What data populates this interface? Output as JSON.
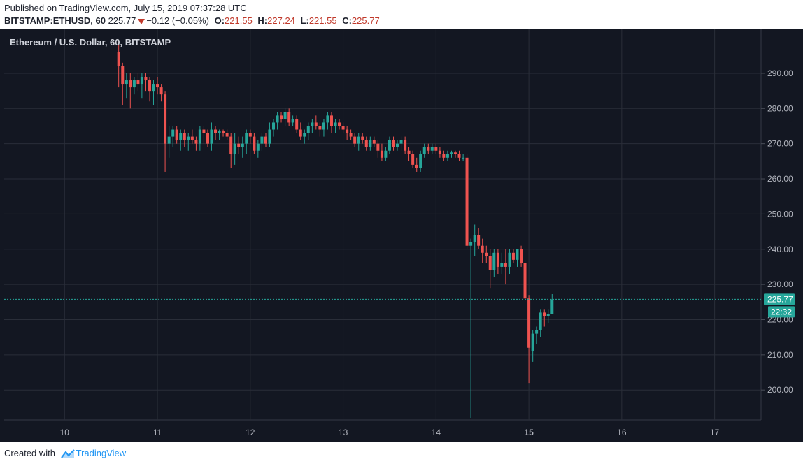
{
  "header": {
    "published": "Published on TradingView.com, July 15, 2019 07:37:28 UTC",
    "symbol": "BITSTAMP:ETHUSD, 60",
    "last": "225.77",
    "change": "−0.12 (−0.05%)",
    "o_label": "O:",
    "o_value": "221.55",
    "h_label": "H:",
    "h_value": "227.24",
    "l_label": "L:",
    "l_value": "221.55",
    "c_label": "C:",
    "c_value": "225.77"
  },
  "footer": {
    "created_with": "Created with",
    "brand": "TradingView"
  },
  "colors": {
    "background": "#131722",
    "grid": "#2a2e39",
    "up": "#26a69a",
    "down": "#ef5350",
    "axis_text": "#b2b5be",
    "price_line": "#26a69a"
  },
  "chart_data": {
    "type": "candlestick",
    "title": "Ethereum / U.S. Dollar, 60, BITSTAMP",
    "x_tick_labels": [
      "10",
      "11",
      "12",
      "13",
      "14",
      "15",
      "16",
      "17"
    ],
    "y_tick_labels": [
      "200.00",
      "210.00",
      "220.00",
      "230.00",
      "240.00",
      "250.00",
      "260.00",
      "270.00",
      "280.00",
      "290.00"
    ],
    "ylim": [
      191.5,
      302.5
    ],
    "xlim": [
      9.35,
      17.5
    ],
    "grid": true,
    "last_price_label": "225.77",
    "countdown_label": "22:32",
    "candles": [
      {
        "t": 10.583,
        "o": 296,
        "h": 299,
        "l": 286,
        "c": 292
      },
      {
        "t": 10.625,
        "o": 292,
        "h": 293,
        "l": 281,
        "c": 287
      },
      {
        "t": 10.667,
        "o": 287,
        "h": 290,
        "l": 283,
        "c": 288
      },
      {
        "t": 10.708,
        "o": 288,
        "h": 290,
        "l": 280,
        "c": 286
      },
      {
        "t": 10.75,
        "o": 286,
        "h": 289,
        "l": 284,
        "c": 288
      },
      {
        "t": 10.792,
        "o": 288,
        "h": 290,
        "l": 285,
        "c": 287
      },
      {
        "t": 10.833,
        "o": 287,
        "h": 290,
        "l": 283,
        "c": 289
      },
      {
        "t": 10.875,
        "o": 289,
        "h": 290,
        "l": 285,
        "c": 288
      },
      {
        "t": 10.917,
        "o": 288,
        "h": 289,
        "l": 282,
        "c": 285
      },
      {
        "t": 10.958,
        "o": 285,
        "h": 288,
        "l": 281,
        "c": 287
      },
      {
        "t": 11.0,
        "o": 287,
        "h": 289,
        "l": 284,
        "c": 286
      },
      {
        "t": 11.042,
        "o": 286,
        "h": 287,
        "l": 282,
        "c": 284
      },
      {
        "t": 11.083,
        "o": 284,
        "h": 285,
        "l": 262,
        "c": 270
      },
      {
        "t": 11.125,
        "o": 270,
        "h": 275,
        "l": 266,
        "c": 272
      },
      {
        "t": 11.167,
        "o": 272,
        "h": 275,
        "l": 269,
        "c": 274
      },
      {
        "t": 11.208,
        "o": 274,
        "h": 275,
        "l": 270,
        "c": 271
      },
      {
        "t": 11.25,
        "o": 271,
        "h": 274,
        "l": 268,
        "c": 273
      },
      {
        "t": 11.292,
        "o": 273,
        "h": 274,
        "l": 269,
        "c": 271
      },
      {
        "t": 11.333,
        "o": 271,
        "h": 273,
        "l": 268,
        "c": 272
      },
      {
        "t": 11.375,
        "o": 272,
        "h": 274,
        "l": 270,
        "c": 271
      },
      {
        "t": 11.417,
        "o": 271,
        "h": 272,
        "l": 268,
        "c": 270
      },
      {
        "t": 11.458,
        "o": 270,
        "h": 275,
        "l": 268,
        "c": 274
      },
      {
        "t": 11.5,
        "o": 274,
        "h": 275,
        "l": 270,
        "c": 273
      },
      {
        "t": 11.542,
        "o": 273,
        "h": 274,
        "l": 269,
        "c": 270
      },
      {
        "t": 11.583,
        "o": 270,
        "h": 276,
        "l": 268,
        "c": 274
      },
      {
        "t": 11.625,
        "o": 274,
        "h": 275,
        "l": 271,
        "c": 273
      },
      {
        "t": 11.667,
        "o": 273,
        "h": 274,
        "l": 271,
        "c": 273.5
      },
      {
        "t": 11.708,
        "o": 273.5,
        "h": 274,
        "l": 272,
        "c": 273
      },
      {
        "t": 11.75,
        "o": 273,
        "h": 274,
        "l": 271,
        "c": 272
      },
      {
        "t": 11.792,
        "o": 272,
        "h": 273,
        "l": 263,
        "c": 267
      },
      {
        "t": 11.833,
        "o": 267,
        "h": 273,
        "l": 264,
        "c": 270
      },
      {
        "t": 11.875,
        "o": 270,
        "h": 272,
        "l": 267,
        "c": 269
      },
      {
        "t": 11.917,
        "o": 269,
        "h": 272,
        "l": 266,
        "c": 270
      },
      {
        "t": 11.958,
        "o": 270,
        "h": 274,
        "l": 267,
        "c": 273
      },
      {
        "t": 12.0,
        "o": 273,
        "h": 274,
        "l": 270,
        "c": 272
      },
      {
        "t": 12.042,
        "o": 272,
        "h": 273,
        "l": 267,
        "c": 268
      },
      {
        "t": 12.083,
        "o": 268,
        "h": 271,
        "l": 266,
        "c": 270
      },
      {
        "t": 12.125,
        "o": 270,
        "h": 273,
        "l": 268,
        "c": 272
      },
      {
        "t": 12.167,
        "o": 272,
        "h": 273,
        "l": 269,
        "c": 270
      },
      {
        "t": 12.208,
        "o": 270,
        "h": 276,
        "l": 269,
        "c": 274
      },
      {
        "t": 12.25,
        "o": 274,
        "h": 277,
        "l": 272,
        "c": 276
      },
      {
        "t": 12.292,
        "o": 276,
        "h": 279,
        "l": 274,
        "c": 278
      },
      {
        "t": 12.333,
        "o": 278,
        "h": 279,
        "l": 276,
        "c": 277
      },
      {
        "t": 12.375,
        "o": 277,
        "h": 280,
        "l": 275,
        "c": 279
      },
      {
        "t": 12.417,
        "o": 279,
        "h": 280,
        "l": 275,
        "c": 276
      },
      {
        "t": 12.458,
        "o": 276,
        "h": 278,
        "l": 275,
        "c": 277
      },
      {
        "t": 12.5,
        "o": 277,
        "h": 278,
        "l": 273,
        "c": 274
      },
      {
        "t": 12.542,
        "o": 274,
        "h": 276,
        "l": 271,
        "c": 272
      },
      {
        "t": 12.583,
        "o": 272,
        "h": 274,
        "l": 270,
        "c": 273
      },
      {
        "t": 12.625,
        "o": 273,
        "h": 276,
        "l": 271,
        "c": 275
      },
      {
        "t": 12.667,
        "o": 275,
        "h": 277,
        "l": 273,
        "c": 276
      },
      {
        "t": 12.708,
        "o": 276,
        "h": 278,
        "l": 274,
        "c": 275
      },
      {
        "t": 12.75,
        "o": 275,
        "h": 276,
        "l": 272,
        "c": 274
      },
      {
        "t": 12.792,
        "o": 274,
        "h": 277,
        "l": 272,
        "c": 276
      },
      {
        "t": 12.833,
        "o": 276,
        "h": 279,
        "l": 274,
        "c": 278
      },
      {
        "t": 12.875,
        "o": 278,
        "h": 279,
        "l": 273,
        "c": 275
      },
      {
        "t": 12.917,
        "o": 275,
        "h": 277,
        "l": 273,
        "c": 276
      },
      {
        "t": 12.958,
        "o": 276,
        "h": 277,
        "l": 274,
        "c": 275
      },
      {
        "t": 13.0,
        "o": 275,
        "h": 276,
        "l": 273,
        "c": 274
      },
      {
        "t": 13.042,
        "o": 274,
        "h": 275,
        "l": 271,
        "c": 273
      },
      {
        "t": 13.083,
        "o": 273,
        "h": 274,
        "l": 271,
        "c": 272
      },
      {
        "t": 13.125,
        "o": 272,
        "h": 273,
        "l": 269,
        "c": 270
      },
      {
        "t": 13.167,
        "o": 270,
        "h": 273,
        "l": 268,
        "c": 272
      },
      {
        "t": 13.208,
        "o": 272,
        "h": 273,
        "l": 270,
        "c": 271
      },
      {
        "t": 13.25,
        "o": 271,
        "h": 272,
        "l": 268,
        "c": 269
      },
      {
        "t": 13.292,
        "o": 269,
        "h": 272,
        "l": 268,
        "c": 271
      },
      {
        "t": 13.333,
        "o": 271,
        "h": 272,
        "l": 269,
        "c": 270
      },
      {
        "t": 13.375,
        "o": 270,
        "h": 271,
        "l": 266,
        "c": 268
      },
      {
        "t": 13.417,
        "o": 268,
        "h": 270,
        "l": 265,
        "c": 266
      },
      {
        "t": 13.458,
        "o": 266,
        "h": 269,
        "l": 265,
        "c": 268
      },
      {
        "t": 13.5,
        "o": 268,
        "h": 272,
        "l": 267,
        "c": 271
      },
      {
        "t": 13.542,
        "o": 271,
        "h": 272,
        "l": 268,
        "c": 269
      },
      {
        "t": 13.583,
        "o": 269,
        "h": 271,
        "l": 268,
        "c": 270
      },
      {
        "t": 13.625,
        "o": 270,
        "h": 272,
        "l": 268,
        "c": 271
      },
      {
        "t": 13.667,
        "o": 271,
        "h": 272,
        "l": 267,
        "c": 268
      },
      {
        "t": 13.708,
        "o": 268,
        "h": 269,
        "l": 265,
        "c": 267
      },
      {
        "t": 13.75,
        "o": 267,
        "h": 268,
        "l": 263,
        "c": 264
      },
      {
        "t": 13.792,
        "o": 264,
        "h": 266,
        "l": 262,
        "c": 263
      },
      {
        "t": 13.833,
        "o": 263,
        "h": 268,
        "l": 262,
        "c": 267
      },
      {
        "t": 13.875,
        "o": 267,
        "h": 270,
        "l": 266,
        "c": 269
      },
      {
        "t": 13.917,
        "o": 269,
        "h": 270,
        "l": 267,
        "c": 268
      },
      {
        "t": 13.958,
        "o": 268,
        "h": 270,
        "l": 267,
        "c": 269
      },
      {
        "t": 14.0,
        "o": 269,
        "h": 270,
        "l": 267,
        "c": 268
      },
      {
        "t": 14.042,
        "o": 268,
        "h": 269,
        "l": 266,
        "c": 267
      },
      {
        "t": 14.083,
        "o": 267,
        "h": 268,
        "l": 265,
        "c": 266
      },
      {
        "t": 14.125,
        "o": 266,
        "h": 268,
        "l": 265,
        "c": 267
      },
      {
        "t": 14.167,
        "o": 267,
        "h": 268,
        "l": 266,
        "c": 267.5
      },
      {
        "t": 14.208,
        "o": 267.5,
        "h": 268,
        "l": 266,
        "c": 267
      },
      {
        "t": 14.25,
        "o": 267,
        "h": 268,
        "l": 265,
        "c": 266
      },
      {
        "t": 14.292,
        "o": 266,
        "h": 267,
        "l": 265,
        "c": 266
      },
      {
        "t": 14.333,
        "o": 266,
        "h": 267,
        "l": 240,
        "c": 241
      },
      {
        "t": 14.375,
        "o": 241,
        "h": 243,
        "l": 192,
        "c": 242
      },
      {
        "t": 14.417,
        "o": 242,
        "h": 247,
        "l": 238,
        "c": 244
      },
      {
        "t": 14.458,
        "o": 244,
        "h": 246,
        "l": 240,
        "c": 241
      },
      {
        "t": 14.5,
        "o": 241,
        "h": 243,
        "l": 236,
        "c": 239
      },
      {
        "t": 14.542,
        "o": 239,
        "h": 241,
        "l": 236,
        "c": 238
      },
      {
        "t": 14.583,
        "o": 238,
        "h": 240,
        "l": 229,
        "c": 234
      },
      {
        "t": 14.625,
        "o": 234,
        "h": 240,
        "l": 232,
        "c": 239
      },
      {
        "t": 14.667,
        "o": 239,
        "h": 240,
        "l": 233,
        "c": 235
      },
      {
        "t": 14.708,
        "o": 235,
        "h": 239,
        "l": 233,
        "c": 236
      },
      {
        "t": 14.75,
        "o": 236,
        "h": 240,
        "l": 230,
        "c": 235
      },
      {
        "t": 14.792,
        "o": 235,
        "h": 240,
        "l": 233,
        "c": 239
      },
      {
        "t": 14.833,
        "o": 239,
        "h": 240,
        "l": 236,
        "c": 237
      },
      {
        "t": 14.875,
        "o": 237,
        "h": 240,
        "l": 235,
        "c": 240
      },
      {
        "t": 14.917,
        "o": 240,
        "h": 241,
        "l": 235,
        "c": 236
      },
      {
        "t": 14.958,
        "o": 236,
        "h": 237,
        "l": 225,
        "c": 226
      },
      {
        "t": 15.0,
        "o": 226,
        "h": 227,
        "l": 202,
        "c": 212
      },
      {
        "t": 15.042,
        "o": 211,
        "h": 217,
        "l": 208,
        "c": 216
      },
      {
        "t": 15.083,
        "o": 216,
        "h": 218,
        "l": 213,
        "c": 217
      },
      {
        "t": 15.125,
        "o": 217,
        "h": 223,
        "l": 215,
        "c": 222
      },
      {
        "t": 15.167,
        "o": 222,
        "h": 223,
        "l": 218,
        "c": 221
      },
      {
        "t": 15.208,
        "o": 221,
        "h": 223,
        "l": 219,
        "c": 221.5
      },
      {
        "t": 15.25,
        "o": 221.55,
        "h": 227.24,
        "l": 221.55,
        "c": 225.77
      }
    ]
  }
}
